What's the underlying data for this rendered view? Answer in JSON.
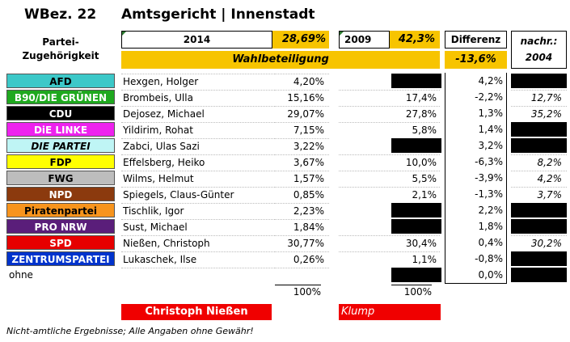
{
  "header": {
    "wbez": "WBez. 22",
    "title": "Amtsgericht | Innenstadt"
  },
  "columns": {
    "partei_line1": "Partei-",
    "partei_line2": "Zugehörigkeit",
    "year_2014": "2014",
    "turnout_2014": "28,69%",
    "year_2009": "2009",
    "turnout_2009": "42,3%",
    "differenz": "Differenz",
    "nachr_line1": "nachr.:",
    "nachr_line2": "2004",
    "wahlbeteiligung": "Wahlbeteiligung",
    "wahl_diff": "-13,6%"
  },
  "rows": [
    {
      "party": "AFD",
      "bg": "#3cc8c8",
      "fg": "#000000",
      "italic": false,
      "candidate": "Hexgen, Holger",
      "v2014": "4,20%",
      "v2009": "",
      "v2009_black": true,
      "diff": "4,2%",
      "v2004": "",
      "v2004_black": true
    },
    {
      "party": "B90/DIE GRÜNEN",
      "bg": "#1fa81f",
      "fg": "#ffffff",
      "italic": false,
      "candidate": "Brombeis, Ulla",
      "v2014": "15,16%",
      "v2009": "17,4%",
      "v2009_black": false,
      "diff": "-2,2%",
      "v2004": "12,7%",
      "v2004_black": false
    },
    {
      "party": "CDU",
      "bg": "#000000",
      "fg": "#ffffff",
      "italic": false,
      "candidate": "Dejosez, Michael",
      "v2014": "29,07%",
      "v2009": "27,8%",
      "v2009_black": false,
      "diff": "1,3%",
      "v2004": "35,2%",
      "v2004_black": false
    },
    {
      "party": "DiE LINKE",
      "bg": "#ee22ee",
      "fg": "#ffffff",
      "italic": false,
      "candidate": "Yildirim, Rohat",
      "v2014": "7,15%",
      "v2009": "5,8%",
      "v2009_black": false,
      "diff": "1,4%",
      "v2004": "",
      "v2004_black": true
    },
    {
      "party": "DIE PARTEI",
      "bg": "#bff5f5",
      "fg": "#000000",
      "italic": true,
      "candidate": "Zabci, Ulas Sazi",
      "v2014": "3,22%",
      "v2009": "",
      "v2009_black": true,
      "diff": "3,2%",
      "v2004": "",
      "v2004_black": true
    },
    {
      "party": "FDP",
      "bg": "#ffff00",
      "fg": "#000000",
      "italic": false,
      "candidate": "Effelsberg, Heiko",
      "v2014": "3,67%",
      "v2009": "10,0%",
      "v2009_black": false,
      "diff": "-6,3%",
      "v2004": "8,2%",
      "v2004_black": false
    },
    {
      "party": "FWG",
      "bg": "#bdbdbd",
      "fg": "#000000",
      "italic": false,
      "candidate": "Wilms, Helmut",
      "v2014": "1,57%",
      "v2009": "5,5%",
      "v2009_black": false,
      "diff": "-3,9%",
      "v2004": "4,2%",
      "v2004_black": false
    },
    {
      "party": "NPD",
      "bg": "#8b3a0e",
      "fg": "#ffffff",
      "italic": false,
      "candidate": "Spiegels, Claus-Günter",
      "v2014": "0,85%",
      "v2009": "2,1%",
      "v2009_black": false,
      "diff": "-1,3%",
      "v2004": "3,7%",
      "v2004_black": false
    },
    {
      "party": "Piratenpartei",
      "bg": "#f7941d",
      "fg": "#000000",
      "italic": false,
      "candidate": "Tischlik, Igor",
      "v2014": "2,23%",
      "v2009": "",
      "v2009_black": true,
      "diff": "2,2%",
      "v2004": "",
      "v2004_black": true
    },
    {
      "party": "PRO NRW",
      "bg": "#5a1e7a",
      "fg": "#ffffff",
      "italic": false,
      "candidate": "Sust, Michael",
      "v2014": "1,84%",
      "v2009": "",
      "v2009_black": true,
      "diff": "1,8%",
      "v2004": "",
      "v2004_black": true
    },
    {
      "party": "SPD",
      "bg": "#e60000",
      "fg": "#ffffff",
      "italic": false,
      "candidate": "Nießen, Christoph",
      "v2014": "30,77%",
      "v2009": "30,4%",
      "v2009_black": false,
      "diff": "0,4%",
      "v2004": "30,2%",
      "v2004_black": false
    },
    {
      "party": "ZENTRUMSPARTEI",
      "bg": "#0033cc",
      "fg": "#ffffff",
      "italic": false,
      "candidate": "Lukaschek, Ilse",
      "v2014": "0,26%",
      "v2009": "1,1%",
      "v2009_black": false,
      "diff": "-0,8%",
      "v2004": "",
      "v2004_black": true
    },
    {
      "party": "ohne",
      "bg": "",
      "fg": "#000000",
      "italic": false,
      "candidate": "",
      "v2014": "",
      "v2009": "",
      "v2009_black": true,
      "diff": "0,0%",
      "v2004": "",
      "v2004_black": true
    }
  ],
  "totals": {
    "sum_2014": "100%",
    "sum_2009": "100%"
  },
  "winners": {
    "winner_2014": "Christoph Nießen",
    "winner_2009": "Klump"
  },
  "footer": "Nicht-amtliche Ergebnisse; Alle Angaben ohne Gewähr!"
}
